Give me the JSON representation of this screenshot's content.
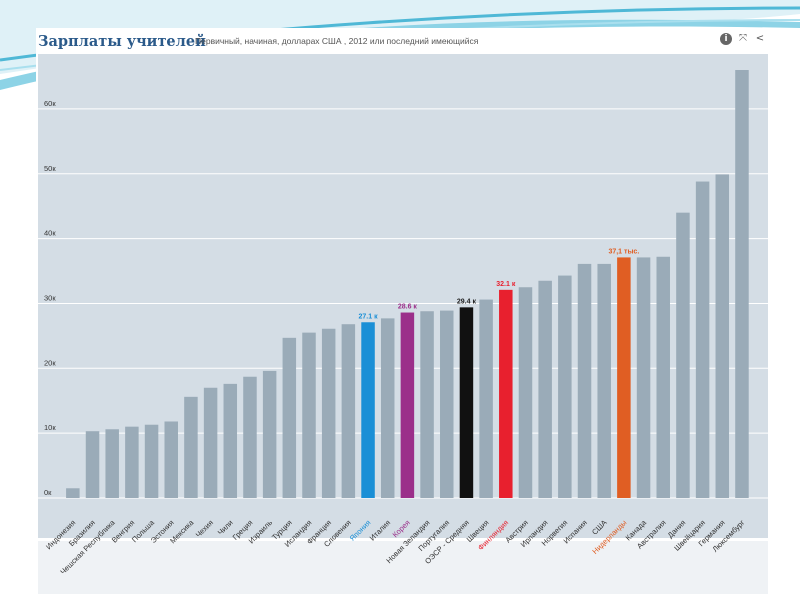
{
  "header": {
    "title": "Зарплаты учителей",
    "subtitle": "Первичный, начиная, долларах США , 2012 или последний имеющийся",
    "tools": [
      {
        "icon": "info-icon",
        "glyph": "i"
      },
      {
        "icon": "expand-icon",
        "glyph": "⤧"
      },
      {
        "icon": "share-icon",
        "glyph": "<"
      }
    ]
  },
  "chart_data": {
    "type": "bar",
    "title": "Зарплаты учителей",
    "subtitle": "Первичный, начиная, долларах США , 2012 или последний имеющийся",
    "xlabel": "",
    "ylabel": "",
    "ylim": [
      0,
      66000
    ],
    "grid": true,
    "y_ticks": [
      0,
      10000,
      20000,
      30000,
      40000,
      50000,
      60000
    ],
    "y_tick_labels": [
      "0к",
      "10к",
      "20к",
      "30к",
      "40к",
      "50к",
      "60к"
    ],
    "default_color": "#9aabb8",
    "categories": [
      "Индонезия",
      "Бразилия",
      "Чешская Республика",
      "Венгрия",
      "Польша",
      "Эстония",
      "Мексика",
      "Чехия",
      "Чили",
      "Греция",
      "Израиль",
      "Турция",
      "Исландия",
      "Франция",
      "Словения",
      "Япония",
      "Италия",
      "Корея",
      "Новая Зеландия",
      "Португалия",
      "ОЭСР - Средняя",
      "Швеция",
      "Финляндия",
      "Австрия",
      "Ирландия",
      "Норвегия",
      "Испания",
      "США",
      "Нидерланды",
      "Канада",
      "Австралия",
      "Дания",
      "Швейцария",
      "Германия",
      "Люксембург"
    ],
    "values": [
      1500,
      10300,
      10600,
      11000,
      11300,
      11800,
      15600,
      17000,
      17600,
      18700,
      19600,
      24700,
      25500,
      26100,
      26800,
      27100,
      27700,
      28600,
      28800,
      28900,
      29400,
      30600,
      32100,
      32500,
      33500,
      34300,
      36100,
      36100,
      37100,
      37100,
      37200,
      44000,
      48800,
      49900,
      66000
    ],
    "highlights": [
      {
        "category": "Япония",
        "label": "27.1 к",
        "color": "#1a8fd6"
      },
      {
        "category": "Корея",
        "label": "28.6 к",
        "color": "#9b2f8a"
      },
      {
        "category": "ОЭСР - Средняя",
        "label": "29.4 к",
        "color": "#111111"
      },
      {
        "category": "Финляндия",
        "label": "32.1 к",
        "color": "#e8202e"
      },
      {
        "category": "Нидерланды",
        "label": "37,1 тыс.",
        "color": "#e05e23"
      }
    ]
  }
}
